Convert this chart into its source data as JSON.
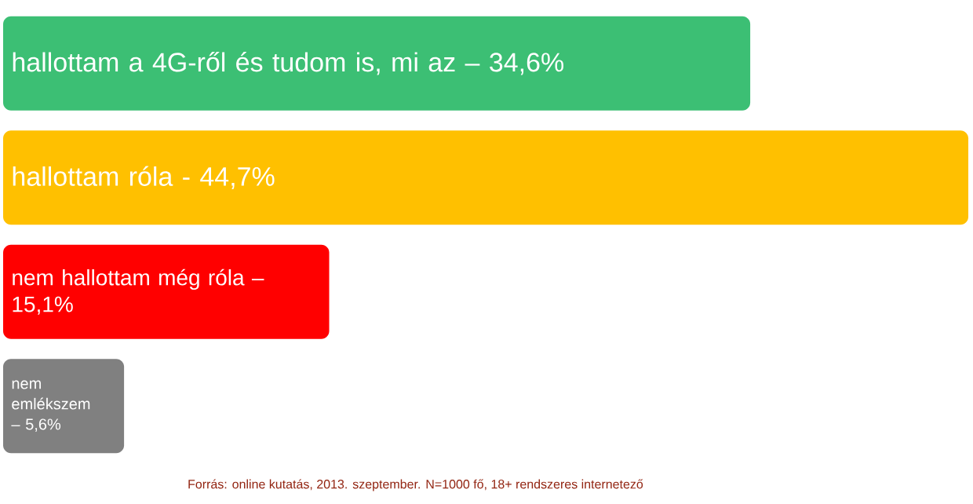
{
  "chart_data": {
    "type": "bar",
    "orientation": "horizontal",
    "categories": [
      "hallottam a 4G-ről és tudom is, mi az –",
      "hallottam róla -",
      "nem hallottam még róla –",
      "nem emlékszem –"
    ],
    "values": [
      34.6,
      44.7,
      15.1,
      5.6
    ],
    "value_labels": [
      "34,6%",
      "44,7%",
      "15,1%",
      "5,6%"
    ],
    "colors": [
      "#3cbf74",
      "#ffc000",
      "#ff0000",
      "#808080"
    ],
    "annotations": [
      "Forrás: online kutatás, 2013. szeptember. N=1000 fő, 18+ rendszeres internetező"
    ]
  }
}
